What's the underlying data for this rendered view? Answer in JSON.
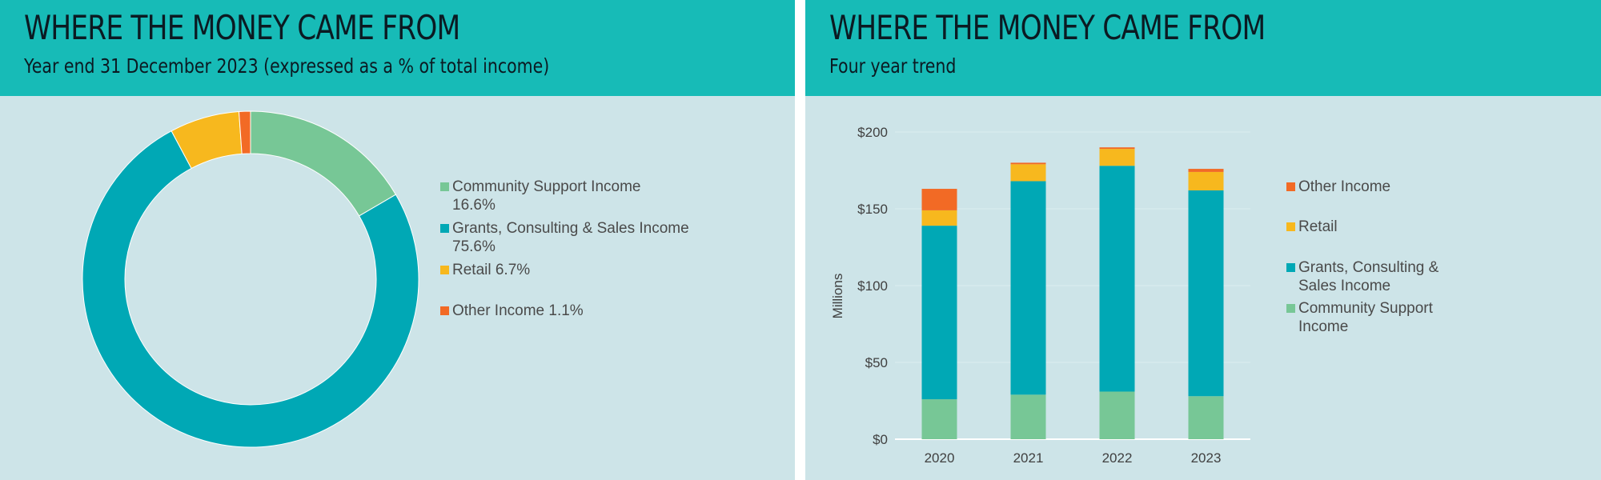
{
  "left": {
    "title": "WHERE THE MONEY CAME FROM",
    "subtitle": "Year end 31 December 2023 (expressed as a % of total income)"
  },
  "right": {
    "title": "WHERE THE MONEY CAME FROM",
    "subtitle": "Four year trend"
  },
  "colors": {
    "community": "#77c796",
    "grants": "#00a8b5",
    "retail": "#f7b81e",
    "other": "#f26a25"
  },
  "chart_data": [
    {
      "type": "pie",
      "variant": "donut",
      "slices": [
        {
          "key": "community",
          "legend_lines": [
            "Community Support Income",
            "16.6%"
          ],
          "value": 16.6
        },
        {
          "key": "grants",
          "legend_lines": [
            "Grants, Consulting & Sales Income",
            "75.6%"
          ],
          "value": 75.6
        },
        {
          "key": "retail",
          "legend_lines": [
            "Retail 6.7%"
          ],
          "value": 6.7
        },
        {
          "key": "other",
          "legend_lines": [
            "Other Income 1.1%"
          ],
          "value": 1.1
        }
      ],
      "legend_position": "right"
    },
    {
      "type": "bar",
      "stacked": true,
      "categories": [
        "2020",
        "2021",
        "2022",
        "2023"
      ],
      "series": [
        {
          "key": "community",
          "legend_lines": [
            "Community Support",
            "Income"
          ],
          "values": [
            26,
            29,
            31,
            28
          ]
        },
        {
          "key": "grants",
          "legend_lines": [
            "Grants, Consulting &",
            "Sales Income"
          ],
          "values": [
            113,
            139,
            147,
            134
          ]
        },
        {
          "key": "retail",
          "legend_lines": [
            "Retail"
          ],
          "values": [
            10,
            11,
            11,
            12
          ]
        },
        {
          "key": "other",
          "legend_lines": [
            "Other Income"
          ],
          "values": [
            14,
            1,
            1,
            2
          ]
        }
      ],
      "legend_order": [
        "other",
        "retail",
        "grants",
        "community"
      ],
      "legend_position": "right",
      "ylabel": "Millions",
      "ylim": [
        0,
        200
      ],
      "yticks": [
        0,
        50,
        100,
        150,
        200
      ],
      "ytick_labels": [
        "$0",
        "$50",
        "$100",
        "$150",
        "$200"
      ],
      "grid": true
    }
  ]
}
